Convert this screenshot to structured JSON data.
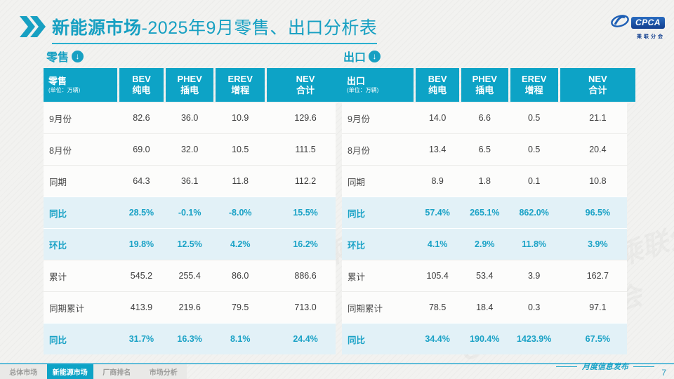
{
  "page": {
    "title_bold": "新能源市场",
    "title_rest": "-2025年9月零售、出口分析表",
    "footer_label": "月度信息发布",
    "page_number": "7"
  },
  "logo": {
    "cpca": "CPCA",
    "cn": "乘联分会"
  },
  "decor": {
    "watermark": "CPCA 乘联分会"
  },
  "colors": {
    "accent_teal": "#0da3c6",
    "title_teal": "#17a0c2",
    "highlight_row_bg": "#e2f1f7",
    "highlight_text": "#1aa2c6",
    "logo_blue": "#123f8f"
  },
  "sections": [
    {
      "label": "零售",
      "icon": "↓"
    },
    {
      "label": "出口",
      "icon": "↓"
    }
  ],
  "tables": [
    {
      "title": "零售",
      "unit": "(单位：万辆)",
      "columns": [
        {
          "en": "BEV",
          "cn": "纯电"
        },
        {
          "en": "PHEV",
          "cn": "插电"
        },
        {
          "en": "EREV",
          "cn": "增程"
        },
        {
          "en": "NEV",
          "cn": "合计"
        }
      ],
      "rows": [
        {
          "label": "9月份",
          "values": [
            "82.6",
            "36.0",
            "10.9",
            "129.6"
          ],
          "highlight": false
        },
        {
          "label": "8月份",
          "values": [
            "69.0",
            "32.0",
            "10.5",
            "111.5"
          ],
          "highlight": false
        },
        {
          "label": "同期",
          "values": [
            "64.3",
            "36.1",
            "11.8",
            "112.2"
          ],
          "highlight": false
        },
        {
          "label": "同比",
          "values": [
            "28.5%",
            "-0.1%",
            "-8.0%",
            "15.5%"
          ],
          "highlight": true
        },
        {
          "label": "环比",
          "values": [
            "19.8%",
            "12.5%",
            "4.2%",
            "16.2%"
          ],
          "highlight": true
        },
        {
          "label": "累计",
          "values": [
            "545.2",
            "255.4",
            "86.0",
            "886.6"
          ],
          "highlight": false
        },
        {
          "label": "同期累计",
          "values": [
            "413.9",
            "219.6",
            "79.5",
            "713.0"
          ],
          "highlight": false
        },
        {
          "label": "同比",
          "values": [
            "31.7%",
            "16.3%",
            "8.1%",
            "24.4%"
          ],
          "highlight": true
        }
      ]
    },
    {
      "title": "出口",
      "unit": "(单位：万辆)",
      "columns": [
        {
          "en": "BEV",
          "cn": "纯电"
        },
        {
          "en": "PHEV",
          "cn": "插电"
        },
        {
          "en": "EREV",
          "cn": "增程"
        },
        {
          "en": "NEV",
          "cn": "合计"
        }
      ],
      "rows": [
        {
          "label": "9月份",
          "values": [
            "14.0",
            "6.6",
            "0.5",
            "21.1"
          ],
          "highlight": false
        },
        {
          "label": "8月份",
          "values": [
            "13.4",
            "6.5",
            "0.5",
            "20.4"
          ],
          "highlight": false
        },
        {
          "label": "同期",
          "values": [
            "8.9",
            "1.8",
            "0.1",
            "10.8"
          ],
          "highlight": false
        },
        {
          "label": "同比",
          "values": [
            "57.4%",
            "265.1%",
            "862.0%",
            "96.5%"
          ],
          "highlight": true
        },
        {
          "label": "环比",
          "values": [
            "4.1%",
            "2.9%",
            "11.8%",
            "3.9%"
          ],
          "highlight": true
        },
        {
          "label": "累计",
          "values": [
            "105.4",
            "53.4",
            "3.9",
            "162.7"
          ],
          "highlight": false
        },
        {
          "label": "同期累计",
          "values": [
            "78.5",
            "18.4",
            "0.3",
            "97.1"
          ],
          "highlight": false
        },
        {
          "label": "同比",
          "values": [
            "34.4%",
            "190.4%",
            "1423.9%",
            "67.5%"
          ],
          "highlight": true
        }
      ]
    }
  ],
  "footer_tabs": [
    {
      "label": "总体市场",
      "active": false
    },
    {
      "label": "新能源市场",
      "active": true
    },
    {
      "label": "厂商排名",
      "active": false
    },
    {
      "label": "市场分析",
      "active": false
    }
  ]
}
